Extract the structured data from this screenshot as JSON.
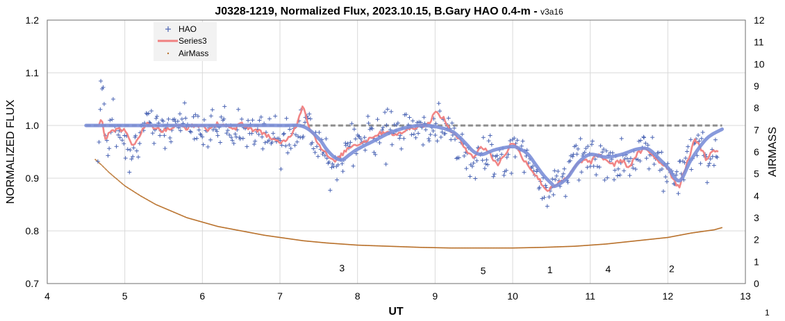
{
  "chart_data": {
    "type": "scatter",
    "title": "J0328-1219, Normalized Flux, 2023.10.15, B.Gary HAO 0.4-m",
    "title_separator": " - ",
    "version": "v3a16",
    "xlabel": "UT",
    "ylabel": "NORMALIZED FLUX",
    "y2label": "AIRMASS",
    "xlim": [
      4,
      13
    ],
    "ylim": [
      0.7,
      1.2
    ],
    "y2lim": [
      0,
      12
    ],
    "x_ticks": [
      "4",
      "5",
      "6",
      "7",
      "8",
      "9",
      "10",
      "11",
      "12",
      "13"
    ],
    "y_ticks": [
      "0.7",
      "0.8",
      "0.9",
      "1.0",
      "1.1",
      "1.2"
    ],
    "y2_ticks": [
      "0",
      "1",
      "2",
      "3",
      "4",
      "5",
      "6",
      "7",
      "8",
      "9",
      "10",
      "11",
      "12"
    ],
    "grid": true,
    "legend_position": "top-left",
    "corner_note": "1",
    "colors": {
      "hao": "#4a64b4",
      "series3": "#f08080",
      "model": "#7b8fd8",
      "airmass": "#b8702a",
      "baseline": "#8c8c8c"
    },
    "series": [
      {
        "name": "HAO",
        "marker": "plus",
        "anchors": [
          [
            4.65,
            0.935
          ],
          [
            4.7,
            1.1
          ],
          [
            4.78,
            0.96
          ],
          [
            4.85,
            1.03
          ],
          [
            4.9,
            0.975
          ],
          [
            5.0,
            0.99
          ],
          [
            5.05,
            0.92
          ],
          [
            5.1,
            0.965
          ],
          [
            5.15,
            0.95
          ],
          [
            5.2,
            0.98
          ],
          [
            5.3,
            1.01
          ],
          [
            5.4,
            0.99
          ],
          [
            5.5,
            0.995
          ],
          [
            5.6,
            1.0
          ],
          [
            5.7,
            1.005
          ],
          [
            5.8,
            0.99
          ],
          [
            5.9,
            1.0
          ],
          [
            6.0,
            0.985
          ],
          [
            6.1,
            1.0
          ],
          [
            6.2,
            0.99
          ],
          [
            6.3,
            1.005
          ],
          [
            6.4,
            0.985
          ],
          [
            6.5,
            0.99
          ],
          [
            6.6,
            1.0
          ],
          [
            6.7,
            0.995
          ],
          [
            6.8,
            0.985
          ],
          [
            6.9,
            0.975
          ],
          [
            7.0,
            0.965
          ],
          [
            7.1,
            0.985
          ],
          [
            7.2,
            0.99
          ],
          [
            7.3,
            1.01
          ],
          [
            7.4,
            0.99
          ],
          [
            7.5,
            0.96
          ],
          [
            7.6,
            0.935
          ],
          [
            7.7,
            0.93
          ],
          [
            7.8,
            0.945
          ],
          [
            7.9,
            0.955
          ],
          [
            8.0,
            0.965
          ],
          [
            8.1,
            0.975
          ],
          [
            8.2,
            0.98
          ],
          [
            8.3,
            0.985
          ],
          [
            8.4,
            0.985
          ],
          [
            8.5,
            0.99
          ],
          [
            8.6,
            0.99
          ],
          [
            8.7,
            0.995
          ],
          [
            8.8,
            1.0
          ],
          [
            8.9,
            0.995
          ],
          [
            9.0,
            0.995
          ],
          [
            9.1,
            0.99
          ],
          [
            9.2,
            0.985
          ],
          [
            9.3,
            0.97
          ],
          [
            9.4,
            0.95
          ],
          [
            9.5,
            0.94
          ],
          [
            9.6,
            0.945
          ],
          [
            9.7,
            0.95
          ],
          [
            9.8,
            0.935
          ],
          [
            9.9,
            0.945
          ],
          [
            10.0,
            0.955
          ],
          [
            10.1,
            0.95
          ],
          [
            10.2,
            0.935
          ],
          [
            10.3,
            0.915
          ],
          [
            10.4,
            0.89
          ],
          [
            10.5,
            0.885
          ],
          [
            10.6,
            0.9
          ],
          [
            10.7,
            0.92
          ],
          [
            10.8,
            0.935
          ],
          [
            10.9,
            0.94
          ],
          [
            11.0,
            0.935
          ],
          [
            11.1,
            0.935
          ],
          [
            11.2,
            0.94
          ],
          [
            11.3,
            0.935
          ],
          [
            11.4,
            0.93
          ],
          [
            11.5,
            0.935
          ],
          [
            11.6,
            0.945
          ],
          [
            11.7,
            0.95
          ],
          [
            11.8,
            0.945
          ],
          [
            11.9,
            0.935
          ],
          [
            12.0,
            0.915
          ],
          [
            12.1,
            0.9
          ],
          [
            12.2,
            0.915
          ],
          [
            12.3,
            0.945
          ],
          [
            12.4,
            0.975
          ],
          [
            12.5,
            0.955
          ],
          [
            12.6,
            0.955
          ],
          [
            12.65,
            0.945
          ]
        ]
      },
      {
        "name": "Series3",
        "anchors": [
          [
            4.65,
            1.0
          ],
          [
            4.7,
            1.015
          ],
          [
            4.75,
            0.975
          ],
          [
            4.8,
            0.985
          ],
          [
            4.9,
            0.995
          ],
          [
            5.0,
            0.99
          ],
          [
            5.1,
            0.96
          ],
          [
            5.2,
            0.985
          ],
          [
            5.3,
            1.005
          ],
          [
            5.4,
            0.995
          ],
          [
            5.5,
            0.99
          ],
          [
            5.6,
            0.995
          ],
          [
            5.7,
            1.0
          ],
          [
            5.8,
            0.995
          ],
          [
            5.9,
            1.0
          ],
          [
            6.0,
            1.0
          ],
          [
            6.1,
            0.99
          ],
          [
            6.2,
            1.005
          ],
          [
            6.3,
            1.0
          ],
          [
            6.4,
            0.99
          ],
          [
            6.5,
            1.005
          ],
          [
            6.6,
            0.995
          ],
          [
            6.7,
            0.99
          ],
          [
            6.8,
            0.985
          ],
          [
            6.9,
            0.975
          ],
          [
            7.0,
            0.965
          ],
          [
            7.1,
            0.975
          ],
          [
            7.2,
            0.995
          ],
          [
            7.25,
            1.02
          ],
          [
            7.3,
            1.04
          ],
          [
            7.35,
            1.01
          ],
          [
            7.4,
            0.99
          ],
          [
            7.5,
            0.965
          ],
          [
            7.6,
            0.945
          ],
          [
            7.7,
            0.93
          ],
          [
            7.8,
            0.945
          ],
          [
            7.9,
            0.96
          ],
          [
            8.0,
            0.965
          ],
          [
            8.1,
            0.97
          ],
          [
            8.2,
            0.98
          ],
          [
            8.3,
            0.985
          ],
          [
            8.4,
            0.99
          ],
          [
            8.5,
            0.98
          ],
          [
            8.6,
            0.99
          ],
          [
            8.7,
            0.995
          ],
          [
            8.8,
            1.0
          ],
          [
            8.9,
            1.0
          ],
          [
            9.0,
            1.025
          ],
          [
            9.1,
            1.015
          ],
          [
            9.2,
            0.99
          ],
          [
            9.3,
            0.975
          ],
          [
            9.4,
            0.955
          ],
          [
            9.5,
            0.94
          ],
          [
            9.6,
            0.96
          ],
          [
            9.7,
            0.95
          ],
          [
            9.75,
            0.935
          ],
          [
            9.8,
            0.925
          ],
          [
            9.9,
            0.945
          ],
          [
            10.0,
            0.97
          ],
          [
            10.1,
            0.945
          ],
          [
            10.2,
            0.925
          ],
          [
            10.3,
            0.905
          ],
          [
            10.4,
            0.885
          ],
          [
            10.45,
            0.875
          ],
          [
            10.5,
            0.885
          ],
          [
            10.6,
            0.89
          ],
          [
            10.7,
            0.9
          ],
          [
            10.8,
            0.92
          ],
          [
            10.9,
            0.935
          ],
          [
            11.0,
            0.93
          ],
          [
            11.1,
            0.945
          ],
          [
            11.2,
            0.935
          ],
          [
            11.3,
            0.925
          ],
          [
            11.4,
            0.935
          ],
          [
            11.5,
            0.92
          ],
          [
            11.6,
            0.945
          ],
          [
            11.7,
            0.955
          ],
          [
            11.8,
            0.945
          ],
          [
            11.9,
            0.93
          ],
          [
            12.0,
            0.92
          ],
          [
            12.1,
            0.89
          ],
          [
            12.15,
            0.885
          ],
          [
            12.2,
            0.91
          ],
          [
            12.3,
            0.95
          ],
          [
            12.35,
            0.975
          ],
          [
            12.4,
            0.965
          ],
          [
            12.5,
            0.935
          ],
          [
            12.6,
            0.955
          ],
          [
            12.65,
            0.95
          ]
        ]
      },
      {
        "name": "AirMass",
        "axis": "y2",
        "marker": "dot",
        "x": [
          4.62,
          4.7,
          4.8,
          4.9,
          5.0,
          5.2,
          5.4,
          5.6,
          5.8,
          6.0,
          6.2,
          6.5,
          6.8,
          7.0,
          7.3,
          7.6,
          8.0,
          8.4,
          8.8,
          9.2,
          9.6,
          10.0,
          10.4,
          10.8,
          11.2,
          11.6,
          12.0,
          12.3,
          12.6,
          12.7
        ],
        "values": [
          5.65,
          5.4,
          5.05,
          4.75,
          4.45,
          4.0,
          3.6,
          3.3,
          3.0,
          2.8,
          2.6,
          2.4,
          2.2,
          2.1,
          1.95,
          1.85,
          1.75,
          1.7,
          1.65,
          1.62,
          1.62,
          1.62,
          1.65,
          1.7,
          1.8,
          1.95,
          2.1,
          2.3,
          2.45,
          2.55
        ]
      },
      {
        "name": "Model",
        "line_style": "thick smoothed",
        "anchors": [
          [
            4.5,
            1.0
          ],
          [
            5.0,
            1.0
          ],
          [
            6.0,
            1.0
          ],
          [
            7.0,
            1.0
          ],
          [
            7.3,
            0.998
          ],
          [
            7.5,
            0.975
          ],
          [
            7.6,
            0.955
          ],
          [
            7.7,
            0.94
          ],
          [
            7.8,
            0.935
          ],
          [
            7.9,
            0.945
          ],
          [
            8.0,
            0.955
          ],
          [
            8.2,
            0.97
          ],
          [
            8.4,
            0.985
          ],
          [
            8.6,
            0.995
          ],
          [
            8.8,
            1.0
          ],
          [
            9.0,
            0.998
          ],
          [
            9.2,
            0.99
          ],
          [
            9.3,
            0.98
          ],
          [
            9.4,
            0.965
          ],
          [
            9.5,
            0.95
          ],
          [
            9.6,
            0.945
          ],
          [
            9.7,
            0.95
          ],
          [
            9.8,
            0.955
          ],
          [
            10.0,
            0.96
          ],
          [
            10.1,
            0.955
          ],
          [
            10.2,
            0.945
          ],
          [
            10.3,
            0.925
          ],
          [
            10.4,
            0.905
          ],
          [
            10.5,
            0.89
          ],
          [
            10.55,
            0.885
          ],
          [
            10.7,
            0.9
          ],
          [
            10.85,
            0.93
          ],
          [
            11.0,
            0.945
          ],
          [
            11.2,
            0.94
          ],
          [
            11.4,
            0.945
          ],
          [
            11.6,
            0.955
          ],
          [
            11.75,
            0.955
          ],
          [
            11.9,
            0.935
          ],
          [
            12.0,
            0.92
          ],
          [
            12.15,
            0.895
          ],
          [
            12.3,
            0.935
          ],
          [
            12.5,
            0.975
          ],
          [
            12.7,
            0.993
          ]
        ]
      },
      {
        "name": "Baseline",
        "line_style": "dashed",
        "x": [
          4.5,
          12.7
        ],
        "values": [
          1.0,
          1.0
        ]
      }
    ],
    "legend": [
      "HAO",
      "Series3",
      "AirMass"
    ],
    "annotations": [
      {
        "text": "3",
        "x": 7.8,
        "y": 0.723
      },
      {
        "text": "5",
        "x": 9.62,
        "y": 0.718
      },
      {
        "text": "1",
        "x": 10.48,
        "y": 0.72
      },
      {
        "text": "4",
        "x": 11.23,
        "y": 0.721
      },
      {
        "text": "2",
        "x": 12.05,
        "y": 0.722
      }
    ]
  }
}
